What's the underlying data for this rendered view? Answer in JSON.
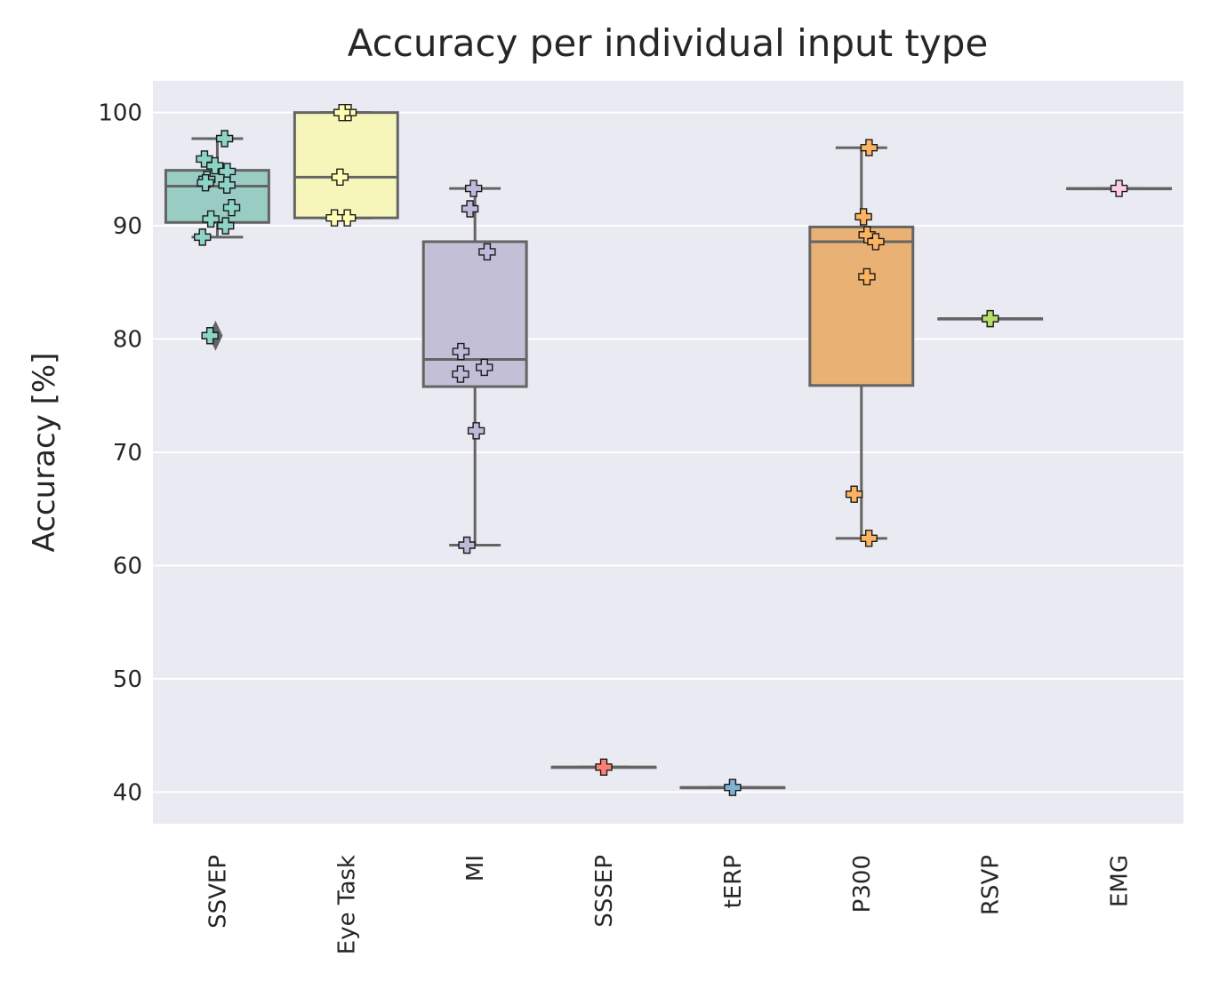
{
  "chart_data": {
    "type": "box",
    "title": "Accuracy per individual input type",
    "xlabel": "",
    "ylabel": "Accuracy [%]",
    "ylim": [
      37.2,
      102.8
    ],
    "yticks": [
      40,
      50,
      60,
      70,
      80,
      90,
      100
    ],
    "grid": true,
    "categories": [
      "SSVEP",
      "Eye Task",
      "MI",
      "SSSEP",
      "tERP",
      "P300",
      "RSVP",
      "EMG"
    ],
    "colors": [
      "#8dd3c7",
      "#ffffb3",
      "#bebada",
      "#fb8072",
      "#80b1d3",
      "#fdb462",
      "#b3de69",
      "#fccde5"
    ],
    "box_colors": [
      "#99cdc3",
      "#f6f6bb",
      "#c3bfd6",
      "#e9887e",
      "#8eb1ca",
      "#e9b274",
      "#b4d17c",
      "#eed0df"
    ],
    "groups": [
      {
        "name": "SSVEP",
        "q1": 90.3,
        "median": 93.5,
        "q3": 94.9,
        "whisker_low": 89.0,
        "whisker_high": 97.7,
        "outliers": [
          80.3
        ],
        "points": [
          97.7,
          95.9,
          95.3,
          94.8,
          94.1,
          93.6,
          93.8,
          91.6,
          90.6,
          90.0,
          89.0,
          80.3
        ]
      },
      {
        "name": "Eye Task",
        "q1": 90.7,
        "median": 94.3,
        "q3": 100.0,
        "whisker_low": 90.7,
        "whisker_high": 100.0,
        "outliers": [],
        "points": [
          100.0,
          100.0,
          94.3,
          90.7,
          90.7
        ]
      },
      {
        "name": "MI",
        "q1": 75.8,
        "median": 78.2,
        "q3": 88.6,
        "whisker_low": 61.8,
        "whisker_high": 93.3,
        "outliers": [],
        "points": [
          93.3,
          91.5,
          87.7,
          78.9,
          77.5,
          76.9,
          71.9,
          61.8
        ]
      },
      {
        "name": "SSSEP",
        "q1": 42.2,
        "median": 42.2,
        "q3": 42.2,
        "whisker_low": 42.2,
        "whisker_high": 42.2,
        "outliers": [],
        "points": [
          42.2
        ]
      },
      {
        "name": "tERP",
        "q1": 40.4,
        "median": 40.4,
        "q3": 40.4,
        "whisker_low": 40.4,
        "whisker_high": 40.4,
        "outliers": [],
        "points": [
          40.4
        ]
      },
      {
        "name": "P300",
        "q1": 75.9,
        "median": 88.6,
        "q3": 89.9,
        "whisker_low": 62.4,
        "whisker_high": 96.9,
        "outliers": [],
        "points": [
          96.9,
          90.8,
          89.2,
          88.6,
          85.5,
          66.3,
          62.4
        ]
      },
      {
        "name": "RSVP",
        "q1": 81.8,
        "median": 81.8,
        "q3": 81.8,
        "whisker_low": 81.8,
        "whisker_high": 81.8,
        "outliers": [],
        "points": [
          81.8
        ]
      },
      {
        "name": "EMG",
        "q1": 93.3,
        "median": 93.3,
        "q3": 93.3,
        "whisker_low": 93.3,
        "whisker_high": 93.3,
        "outliers": [],
        "points": [
          93.3
        ]
      }
    ]
  }
}
